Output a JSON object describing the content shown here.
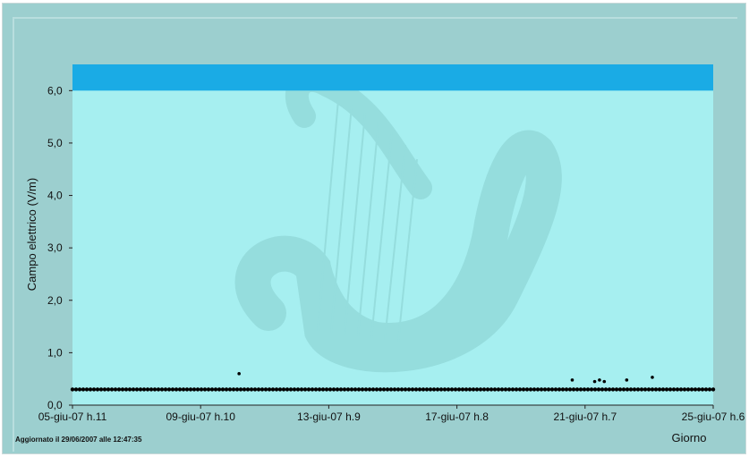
{
  "chart_data": {
    "type": "scatter",
    "title": "",
    "xlabel": "Giorno",
    "ylabel": "Campo elettrico (V/m)",
    "ylim": [
      0,
      6.5
    ],
    "threshold": 6.0,
    "grid": false,
    "x_range_days": [
      0,
      20
    ],
    "xticks": [
      {
        "day": 0,
        "label": "05-giu-07 h.11"
      },
      {
        "day": 4,
        "label": "09-giu-07 h.10"
      },
      {
        "day": 8,
        "label": "13-giu-07 h.9"
      },
      {
        "day": 12,
        "label": "17-giu-07 h.8"
      },
      {
        "day": 16,
        "label": "21-giu-07 h.7"
      },
      {
        "day": 20,
        "label": "25-giu-07 h.6"
      }
    ],
    "yticks": [
      {
        "value": 0.0,
        "label": "0,0"
      },
      {
        "value": 1.0,
        "label": "1,0"
      },
      {
        "value": 2.0,
        "label": "2,0"
      },
      {
        "value": 3.0,
        "label": "3,0"
      },
      {
        "value": 4.0,
        "label": "4,0"
      },
      {
        "value": 5.0,
        "label": "5,0"
      },
      {
        "value": 6.0,
        "label": "6,0"
      }
    ],
    "baseline_value": 0.3,
    "outliers": [
      {
        "day": 5.2,
        "value": 0.6
      },
      {
        "day": 15.6,
        "value": 0.48
      },
      {
        "day": 16.3,
        "value": 0.45
      },
      {
        "day": 16.45,
        "value": 0.48
      },
      {
        "day": 16.6,
        "value": 0.45
      },
      {
        "day": 17.3,
        "value": 0.48
      },
      {
        "day": 18.1,
        "value": 0.53
      }
    ],
    "colors": {
      "plot_area": "#a6eff0",
      "threshold_band": "#1aabe5",
      "points": "#000000",
      "background": "#9ccfcf"
    }
  },
  "footer": {
    "updated_text": "Aggiornato il 29/06/2007 alle 12:47:35"
  }
}
